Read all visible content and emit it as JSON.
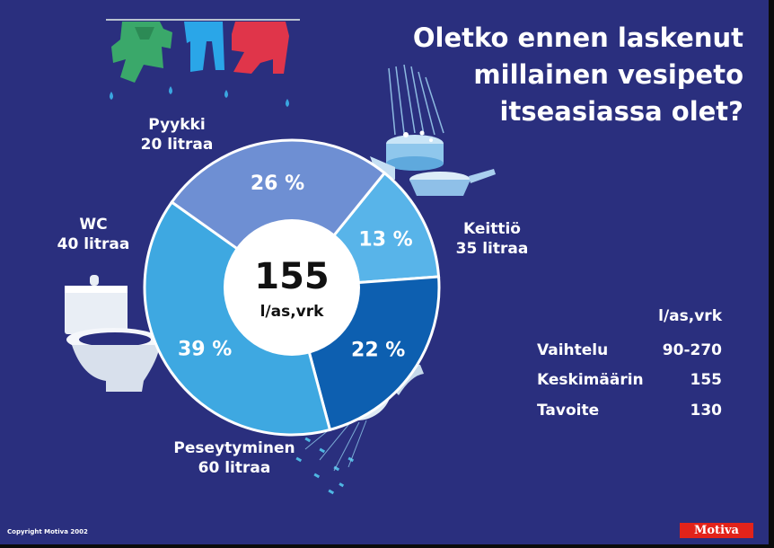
{
  "title_lines": [
    "Oletko ennen laskenut",
    "millainen vesipeto",
    "itseasiassa olet?"
  ],
  "chart_data": {
    "type": "pie",
    "donut": true,
    "total": {
      "value": "155",
      "unit": "l/as,vrk"
    },
    "slices": [
      {
        "label": "Pyykki",
        "liters": "20 litraa",
        "percent": 13,
        "percent_label": "13 %",
        "color": "#58b4e9"
      },
      {
        "label": "Keittiö",
        "liters": "35 litraa",
        "percent": 22,
        "percent_label": "22 %",
        "color": "#0d5fb0"
      },
      {
        "label": "Peseytyminen",
        "liters": "60 litraa",
        "percent": 39,
        "percent_label": "39 %",
        "color": "#3ea8e1"
      },
      {
        "label": "WC",
        "liters": "40 litraa",
        "percent": 26,
        "percent_label": "26 %",
        "color": "#6e8fd3"
      }
    ]
  },
  "stats": {
    "header": "l/as,vrk",
    "rows": [
      {
        "label": "Vaihtelu",
        "value": "90-270"
      },
      {
        "label": "Keskimäärin",
        "value": "155"
      },
      {
        "label": "Tavoite",
        "value": "130"
      }
    ]
  },
  "copyright": "Copyright Motiva 2002",
  "logo": "Motiva",
  "icons": [
    "clothesline-icon",
    "cooking-pots-icon",
    "toilet-icon",
    "shower-head-icon"
  ],
  "colors": {
    "background": "#2a2f7e",
    "ring_gap": "#ffffff",
    "logo": "#e2231a"
  }
}
